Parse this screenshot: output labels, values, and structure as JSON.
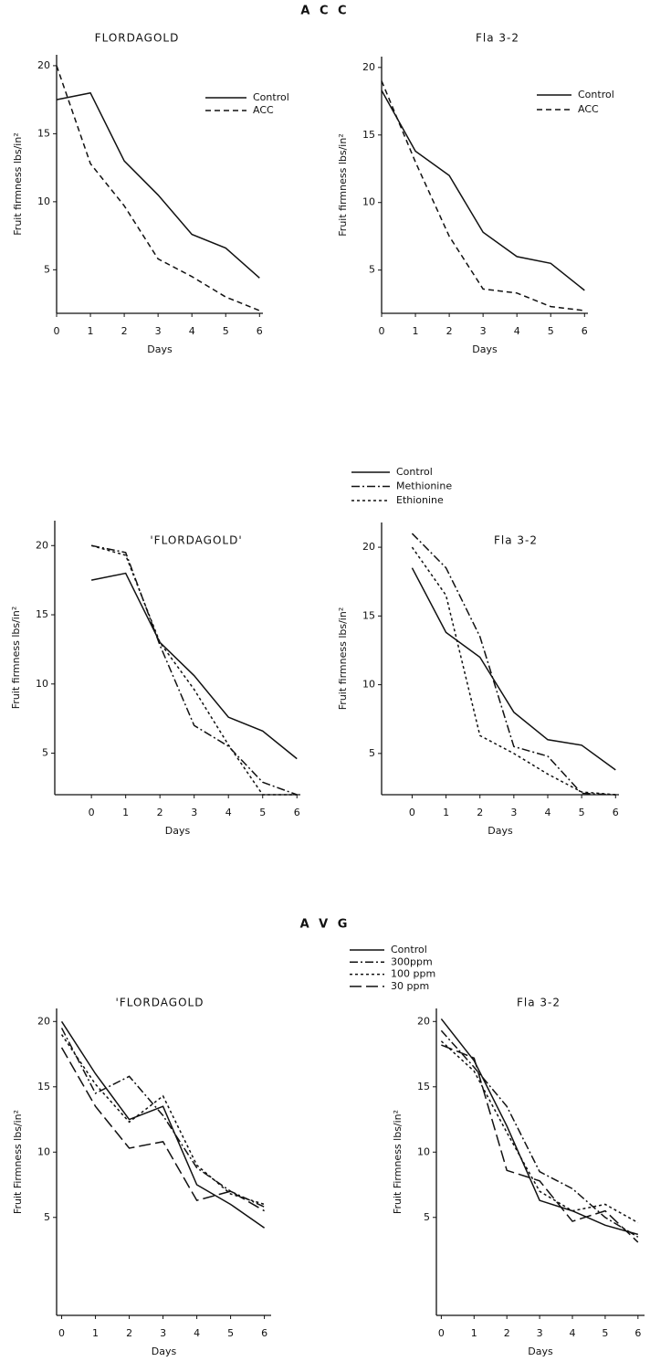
{
  "headings": [
    "A C C",
    "A V G"
  ],
  "chart_data": [
    {
      "type": "line",
      "title": "FLORDAGOLD",
      "xlabel": "Days",
      "ylabel": "Fruit firmness lbs/in²",
      "x": [
        0,
        1,
        2,
        3,
        4,
        5,
        6
      ],
      "xlim": [
        0,
        6.1
      ],
      "ylim": [
        1.8,
        20.8
      ],
      "xticks": [
        0,
        1,
        2,
        3,
        4,
        5,
        6
      ],
      "yticks": [
        5,
        10,
        15,
        20
      ],
      "legend": true,
      "series": [
        {
          "name": "Control",
          "color": "#111111",
          "dash": "solid",
          "values": [
            17.5,
            18,
            13,
            10.5,
            7.6,
            6.6,
            4.4
          ]
        },
        {
          "name": "ACC",
          "color": "#111111",
          "dash": "dashed",
          "values": [
            20,
            12.8,
            9.7,
            5.8,
            4.5,
            3,
            2
          ]
        }
      ]
    },
    {
      "type": "line",
      "title": "Fla 3-2",
      "xlabel": "Days",
      "ylabel": "Fruit firmness lbs/in²",
      "x": [
        0,
        1,
        2,
        3,
        4,
        5,
        6
      ],
      "xlim": [
        0,
        6.1
      ],
      "ylim": [
        1.8,
        20.8
      ],
      "xticks": [
        0,
        1,
        2,
        3,
        4,
        5,
        6
      ],
      "yticks": [
        5,
        10,
        15,
        20
      ],
      "legend": true,
      "series": [
        {
          "name": "Control",
          "color": "#111111",
          "dash": "solid",
          "values": [
            18.3,
            13.8,
            12,
            7.8,
            6,
            5.5,
            3.5
          ]
        },
        {
          "name": "ACC",
          "color": "#111111",
          "dash": "dashed",
          "values": [
            19,
            13,
            7.5,
            3.6,
            3.3,
            2.3,
            2
          ]
        }
      ]
    },
    {
      "type": "line",
      "title": "'FLORDAGOLD'",
      "xlabel": "Days",
      "ylabel": "Fruit firmness lbs/in²",
      "x": [
        0,
        1,
        2,
        3,
        4,
        5,
        6
      ],
      "xlim": [
        -1.07,
        6.1
      ],
      "ylim": [
        2,
        21.8
      ],
      "xticks": [
        0,
        1,
        2,
        3,
        4,
        5,
        6
      ],
      "yticks": [
        5,
        10,
        15,
        20
      ],
      "legend": false,
      "series": [
        {
          "color": "#111111",
          "dash": "solid",
          "values": [
            17.5,
            18,
            13,
            10.6,
            7.6,
            6.6,
            4.6
          ]
        },
        {
          "color": "#111111",
          "dash": "dashdot",
          "values": [
            20,
            19.5,
            12.8,
            7,
            5.5,
            2.9,
            2
          ]
        },
        {
          "color": "#111111",
          "dash": "dotted",
          "values": [
            20,
            19.3,
            13,
            9.6,
            5.6,
            2,
            2
          ]
        }
      ]
    },
    {
      "type": "line",
      "title": "Fla 3-2",
      "xlabel": "Days",
      "ylabel": "Fruit firmness lbs/in²",
      "x": [
        0,
        1,
        2,
        3,
        4,
        5,
        6
      ],
      "xlim": [
        -0.9,
        6.1
      ],
      "ylim": [
        2,
        21.8
      ],
      "xticks": [
        0,
        1,
        2,
        3,
        4,
        5,
        6
      ],
      "yticks": [
        5,
        10,
        15,
        20
      ],
      "legend": true,
      "series": [
        {
          "name": "Control",
          "color": "#111111",
          "dash": "solid",
          "values": [
            18.5,
            13.8,
            12,
            8,
            6,
            5.6,
            3.8
          ]
        },
        {
          "name": "Methionine",
          "color": "#111111",
          "dash": "dashdot",
          "values": [
            21,
            18.5,
            13.5,
            5.5,
            4.8,
            2.1,
            2
          ]
        },
        {
          "name": "Ethionine",
          "color": "#111111",
          "dash": "dotted",
          "values": [
            20,
            16.5,
            6.3,
            5,
            3.5,
            2.2,
            2
          ]
        }
      ]
    },
    {
      "type": "line",
      "title": "'FLORDAGOLD",
      "xlabel": "Days",
      "ylabel": "Fruit Firmness lbs/in²",
      "x": [
        0,
        1,
        2,
        3,
        4,
        5,
        6
      ],
      "xlim": [
        -0.15,
        6.2
      ],
      "ylim": [
        -2.5,
        21
      ],
      "xticks": [
        0,
        1,
        2,
        3,
        4,
        5,
        6
      ],
      "yticks": [
        5,
        10,
        15,
        20
      ],
      "legend": false,
      "series": [
        {
          "color": "#111111",
          "dash": "solid",
          "values": [
            20,
            16,
            12.5,
            13.5,
            7.5,
            6,
            4.2
          ]
        },
        {
          "color": "#111111",
          "dash": "dashdot",
          "values": [
            19.5,
            14.5,
            15.8,
            12.8,
            8.8,
            7,
            5.8
          ]
        },
        {
          "color": "#111111",
          "dash": "dotted",
          "values": [
            19,
            15.2,
            12.3,
            14.3,
            9,
            6.8,
            6
          ]
        },
        {
          "color": "#111111",
          "dash": "longdash",
          "values": [
            18,
            13.5,
            10.3,
            10.8,
            6.3,
            7,
            5.5
          ]
        }
      ]
    },
    {
      "type": "line",
      "title": "Fla 3-2",
      "xlabel": "Days",
      "ylabel": "Fruit Firmness lbs/in²",
      "x": [
        0,
        1,
        2,
        3,
        4,
        5,
        6
      ],
      "xlim": [
        -0.15,
        6.2
      ],
      "ylim": [
        -2.5,
        21
      ],
      "xticks": [
        0,
        1,
        2,
        3,
        4,
        5,
        6
      ],
      "yticks": [
        5,
        10,
        15,
        20
      ],
      "legend": true,
      "series": [
        {
          "name": "Control",
          "color": "#111111",
          "dash": "solid",
          "values": [
            20.2,
            17,
            12,
            6.3,
            5.5,
            4.4,
            3.7
          ]
        },
        {
          "name": "300ppm",
          "color": "#111111",
          "dash": "dashdot",
          "values": [
            19.3,
            16.5,
            13.5,
            8.5,
            7.2,
            5,
            3.5
          ]
        },
        {
          "name": "100 ppm",
          "color": "#111111",
          "dash": "dotted",
          "values": [
            18.5,
            16.2,
            11.5,
            7,
            5.5,
            6,
            4.6
          ]
        },
        {
          "name": "30 ppm",
          "color": "#111111",
          "dash": "longdash",
          "values": [
            18.2,
            17.2,
            8.6,
            7.8,
            4.7,
            5.5,
            3.1
          ]
        }
      ]
    }
  ]
}
